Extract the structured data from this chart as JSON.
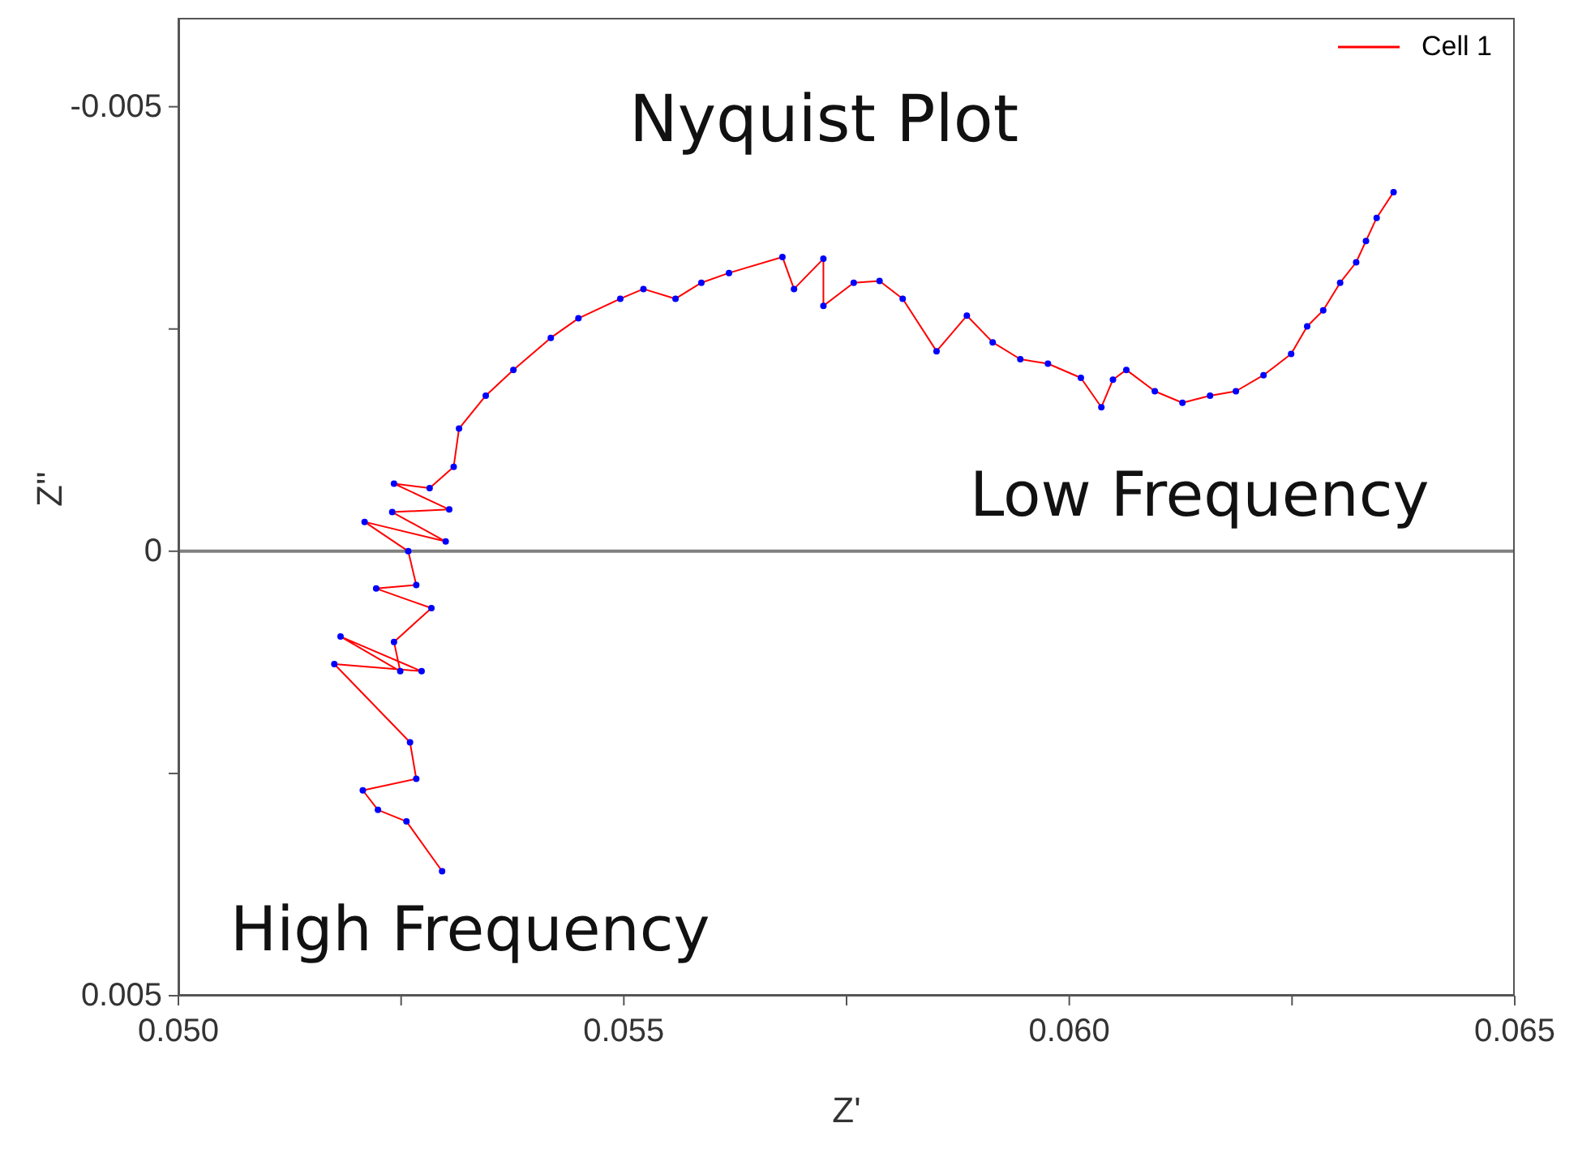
{
  "chart_data": {
    "type": "line",
    "title": "Nyquist Plot",
    "xlabel": "Z'",
    "ylabel": "Z''",
    "annotations": [
      "Low Frequency",
      "High Frequency"
    ],
    "xlim": [
      0.05,
      0.065
    ],
    "xticks": [
      {
        "value": 0.05,
        "label": "0.050"
      },
      {
        "value": 0.0525,
        "label": null
      },
      {
        "value": 0.055,
        "label": "0.055"
      },
      {
        "value": 0.0575,
        "label": null
      },
      {
        "value": 0.06,
        "label": "0.060"
      },
      {
        "value": 0.0625,
        "label": null
      },
      {
        "value": 0.065,
        "label": "0.065"
      }
    ],
    "ylim": [
      0.005,
      -0.006
    ],
    "yticks": [
      -0.005,
      {
        "value": -0.0025,
        "label": null
      },
      0,
      {
        "value": 0.0025,
        "label": null
      },
      0.005
    ],
    "grid": false,
    "legend": "top right",
    "ref_lines": [
      {
        "axis": "y",
        "value": 0,
        "label": null,
        "color": "#808080"
      }
    ],
    "x": [
      0.05296,
      0.05256,
      0.05224,
      0.05207,
      0.05267,
      0.0526,
      0.05175,
      0.05273,
      0.05182,
      0.05249,
      0.05242,
      0.05284,
      0.05222,
      0.05267,
      0.05258,
      0.05209,
      0.053,
      0.0524,
      0.05304,
      0.05242,
      0.05282,
      0.05309,
      0.05315,
      0.05345,
      0.05376,
      0.05418,
      0.05449,
      0.05496,
      0.05522,
      0.05558,
      0.05587,
      0.05618,
      0.05678,
      0.05691,
      0.05724,
      0.05724,
      0.05758,
      0.05787,
      0.05813,
      0.05851,
      0.05885,
      0.05914,
      0.05945,
      0.05976,
      0.06013,
      0.06036,
      0.06049,
      0.06064,
      0.06096,
      0.06127,
      0.06158,
      0.06187,
      0.06218,
      0.06249,
      0.06267,
      0.06285,
      0.06304,
      0.06322,
      0.06333,
      0.06345,
      0.06364
    ],
    "series": [
      {
        "name": "Cell 1",
        "color": "#ff0000",
        "marker": "none",
        "values": [
          0.0036,
          0.00304,
          0.00291,
          0.00269,
          0.00256,
          0.00215,
          0.00127,
          0.00135,
          0.00096,
          0.00135,
          0.00102,
          0.00064,
          0.00042,
          0.00038,
          0,
          -0.00033,
          -0.00011,
          -0.00044,
          -0.00047,
          -0.00076,
          -0.00071,
          -0.00095,
          -0.00138,
          -0.00175,
          -0.00204,
          -0.0024,
          -0.00262,
          -0.00284,
          -0.00295,
          -0.00284,
          -0.00302,
          -0.00313,
          -0.00331,
          -0.00295,
          -0.00329,
          -0.00276,
          -0.00302,
          -0.00304,
          -0.00284,
          -0.00225,
          -0.00265,
          -0.00235,
          -0.00216,
          -0.00211,
          -0.00195,
          -0.00162,
          -0.00193,
          -0.00204,
          -0.0018,
          -0.00167,
          -0.00175,
          -0.0018,
          -0.00198,
          -0.00222,
          -0.00253,
          -0.00271,
          -0.00302,
          -0.00325,
          -0.00349,
          -0.00375,
          -0.00404
        ]
      },
      {
        "type": "scatter",
        "color": "#0000ff",
        "marker": "circle",
        "values": [
          0.0036,
          0.00304,
          0.00291,
          0.00269,
          0.00256,
          0.00215,
          0.00127,
          0.00135,
          0.00096,
          0.00135,
          0.00102,
          0.00064,
          0.00042,
          0.00038,
          0,
          -0.00033,
          -0.00011,
          -0.00044,
          -0.00047,
          -0.00076,
          -0.00071,
          -0.00095,
          -0.00138,
          -0.00175,
          -0.00204,
          -0.0024,
          -0.00262,
          -0.00284,
          -0.00295,
          -0.00284,
          -0.00302,
          -0.00313,
          -0.00331,
          -0.00295,
          -0.00329,
          -0.00276,
          -0.00302,
          -0.00304,
          -0.00284,
          -0.00225,
          -0.00265,
          -0.00235,
          -0.00216,
          -0.00211,
          -0.00195,
          -0.00162,
          -0.00193,
          -0.00204,
          -0.0018,
          -0.00167,
          -0.00175,
          -0.0018,
          -0.00198,
          -0.00222,
          -0.00253,
          -0.00271,
          -0.00302,
          -0.00325,
          -0.00349,
          -0.00375,
          -0.00404
        ]
      }
    ]
  }
}
